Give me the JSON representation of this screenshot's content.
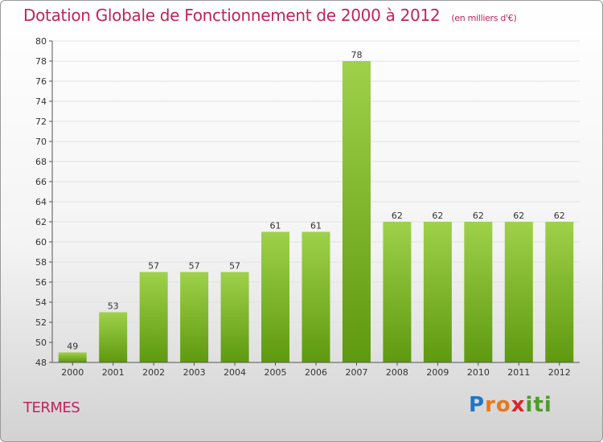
{
  "header": {
    "title": "Dotation Globale de Fonctionnement de 2000 à 2012",
    "subtitle": "(en milliers d'€)"
  },
  "footer": {
    "place": "TERMES",
    "logo": {
      "text": "Proxiti",
      "letters": [
        {
          "ch": "P",
          "color": "#1f77c4"
        },
        {
          "ch": "r",
          "color": "#e8781e"
        },
        {
          "ch": "o",
          "color": "#e8781e"
        },
        {
          "ch": "x",
          "color": "#d8262a"
        },
        {
          "ch": "i",
          "color": "#4f9b2c"
        },
        {
          "ch": "t",
          "color": "#4f9b2c"
        },
        {
          "ch": "i",
          "color": "#4f9b2c"
        }
      ]
    }
  },
  "colors": {
    "title": "#c0245c",
    "bar_light": "#9fd14a",
    "bar_dark": "#5e9910",
    "grid": "#e2e2e2",
    "axis": "#555555"
  },
  "chart_data": {
    "type": "bar",
    "categories": [
      "2000",
      "2001",
      "2002",
      "2003",
      "2004",
      "2005",
      "2006",
      "2007",
      "2008",
      "2009",
      "2010",
      "2011",
      "2012"
    ],
    "values": [
      49,
      53,
      57,
      57,
      57,
      61,
      61,
      78,
      62,
      62,
      62,
      62,
      62
    ],
    "ylim": [
      48,
      80
    ],
    "yticks": [
      48,
      50,
      52,
      54,
      56,
      58,
      60,
      62,
      64,
      66,
      68,
      70,
      72,
      74,
      76,
      78,
      80
    ],
    "grid": true,
    "data_labels": true
  }
}
